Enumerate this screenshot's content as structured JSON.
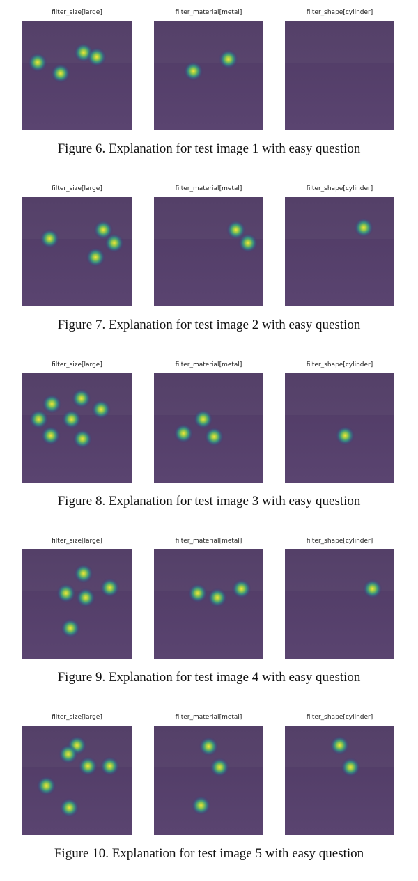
{
  "figures": [
    {
      "caption": "Figure 6. Explanation for test image 1 with easy question",
      "panels": [
        {
          "title": "filter_size[large]",
          "hotspots": [
            [
              0.14,
              0.38
            ],
            [
              0.35,
              0.48
            ],
            [
              0.56,
              0.29
            ],
            [
              0.68,
              0.33
            ]
          ]
        },
        {
          "title": "filter_material[metal]",
          "hotspots": [
            [
              0.36,
              0.46
            ],
            [
              0.68,
              0.35
            ]
          ]
        },
        {
          "title": "filter_shape[cylinder]",
          "hotspots": []
        }
      ]
    },
    {
      "caption": "Figure 7. Explanation for test image 2 with easy question",
      "panels": [
        {
          "title": "filter_size[large]",
          "hotspots": [
            [
              0.25,
              0.38
            ],
            [
              0.74,
              0.3
            ],
            [
              0.84,
              0.42
            ],
            [
              0.67,
              0.55
            ]
          ]
        },
        {
          "title": "filter_material[metal]",
          "hotspots": [
            [
              0.75,
              0.3
            ],
            [
              0.86,
              0.42
            ]
          ]
        },
        {
          "title": "filter_shape[cylinder]",
          "hotspots": [
            [
              0.72,
              0.28
            ]
          ]
        }
      ]
    },
    {
      "caption": "Figure 8. Explanation for test image 3 with easy question",
      "panels": [
        {
          "title": "filter_size[large]",
          "hotspots": [
            [
              0.27,
              0.28
            ],
            [
              0.54,
              0.23
            ],
            [
              0.15,
              0.42
            ],
            [
              0.45,
              0.42
            ],
            [
              0.72,
              0.33
            ],
            [
              0.26,
              0.57
            ],
            [
              0.55,
              0.6
            ]
          ]
        },
        {
          "title": "filter_material[metal]",
          "hotspots": [
            [
              0.27,
              0.55
            ],
            [
              0.45,
              0.42
            ],
            [
              0.55,
              0.58
            ]
          ]
        },
        {
          "title": "filter_shape[cylinder]",
          "hotspots": [
            [
              0.55,
              0.57
            ]
          ]
        }
      ]
    },
    {
      "caption": "Figure 9. Explanation for test image 4 with easy question",
      "panels": [
        {
          "title": "filter_size[large]",
          "hotspots": [
            [
              0.56,
              0.22
            ],
            [
              0.4,
              0.4
            ],
            [
              0.58,
              0.44
            ],
            [
              0.8,
              0.35
            ],
            [
              0.44,
              0.72
            ]
          ]
        },
        {
          "title": "filter_material[metal]",
          "hotspots": [
            [
              0.4,
              0.4
            ],
            [
              0.58,
              0.44
            ],
            [
              0.8,
              0.36
            ]
          ]
        },
        {
          "title": "filter_shape[cylinder]",
          "hotspots": [
            [
              0.8,
              0.36
            ]
          ]
        }
      ]
    },
    {
      "caption": "Figure 10. Explanation for test image 5 with easy question",
      "panels": [
        {
          "title": "filter_size[large]",
          "hotspots": [
            [
              0.5,
              0.18
            ],
            [
              0.42,
              0.26
            ],
            [
              0.6,
              0.37
            ],
            [
              0.8,
              0.37
            ],
            [
              0.22,
              0.55
            ],
            [
              0.43,
              0.75
            ]
          ]
        },
        {
          "title": "filter_material[metal]",
          "hotspots": [
            [
              0.5,
              0.19
            ],
            [
              0.6,
              0.38
            ],
            [
              0.43,
              0.73
            ]
          ]
        },
        {
          "title": "filter_shape[cylinder]",
          "hotspots": [
            [
              0.5,
              0.18
            ],
            [
              0.6,
              0.38
            ]
          ]
        }
      ]
    }
  ]
}
